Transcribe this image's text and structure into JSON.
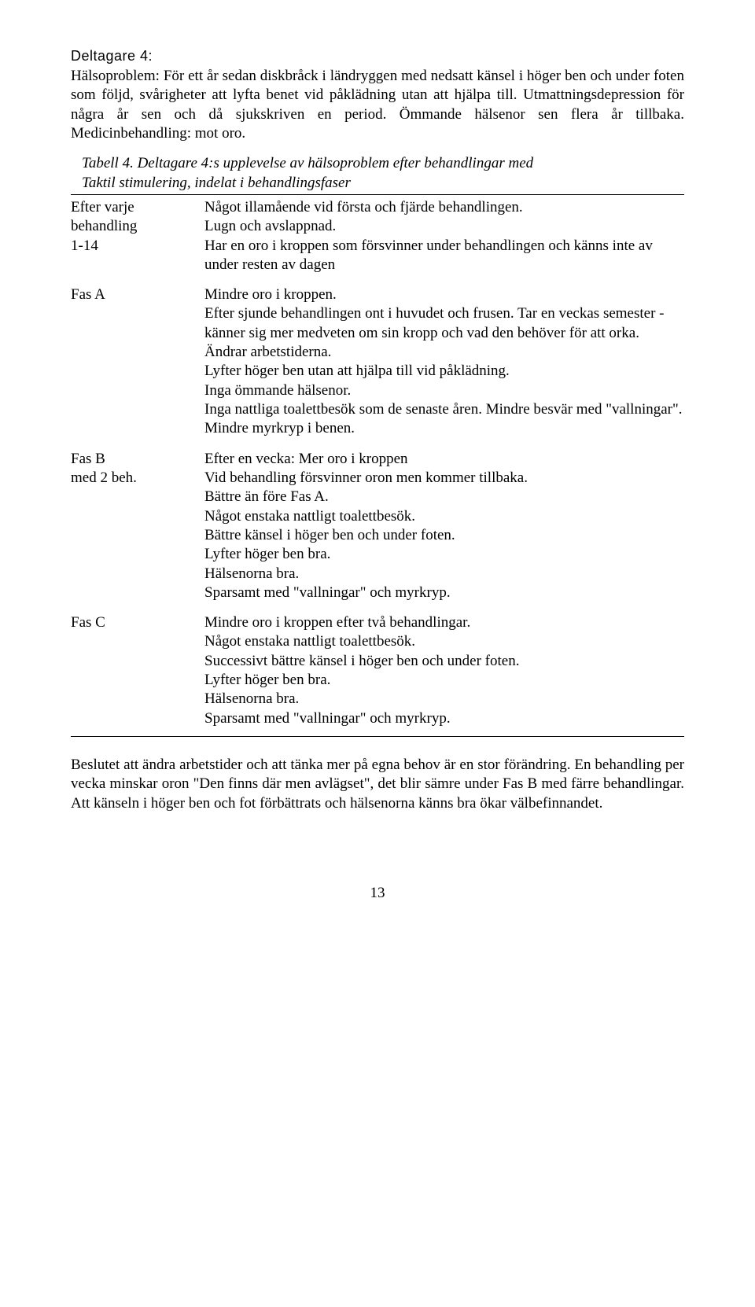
{
  "heading": "Deltagare 4:",
  "intro": [
    "Hälsoproblem: För ett år sedan diskbråck i ländryggen med nedsatt känsel i höger ben och under foten som följd, svårigheter att lyfta benet vid påklädning utan att hjälpa till. Utmattningsdepression för några år sen och då sjukskriven en period. Ömmande hälsenor sen flera år tillbaka. Medicinbehandling: mot oro."
  ],
  "table_caption_lines": [
    "Tabell 4. Deltagare 4:s upplevelse av hälsoproblem efter behandlingar med",
    "Taktil stimulering, indelat i behandlingsfaser"
  ],
  "rows": [
    {
      "left_lines": [
        "Efter varje",
        "behandling",
        "1-14"
      ],
      "right_lines": [
        "Något illamående vid första och fjärde behandlingen.",
        "Lugn och avslappnad.",
        "Har en oro i kroppen som försvinner under behandlingen och känns inte av under resten av dagen"
      ]
    },
    {
      "left_lines": [
        "Fas A"
      ],
      "right_lines": [
        "Mindre oro i kroppen.",
        "Efter sjunde behandlingen ont i huvudet och frusen. Tar en veckas semester - känner sig mer medveten om sin kropp och vad den behöver för att orka.",
        "Ändrar arbetstiderna.",
        "Lyfter höger ben utan att hjälpa till vid påklädning.",
        "Inga ömmande hälsenor.",
        "Inga nattliga toalettbesök som de senaste åren. Mindre besvär med \"vallningar\".",
        "Mindre myrkryp i benen."
      ]
    },
    {
      "left_lines": [
        "Fas B",
        "med 2 beh."
      ],
      "right_lines": [
        "Efter en vecka: Mer oro i kroppen",
        "Vid behandling försvinner oron men kommer tillbaka.",
        "Bättre än före Fas A.",
        "Något enstaka nattligt toalettbesök.",
        "Bättre känsel i höger ben och under foten.",
        "Lyfter höger ben bra.",
        "Hälsenorna bra.",
        "Sparsamt med \"vallningar\" och myrkryp."
      ]
    },
    {
      "left_lines": [
        "Fas C"
      ],
      "right_lines": [
        "Mindre oro i kroppen efter två behandlingar.",
        "Något enstaka nattligt toalettbesök.",
        "Successivt bättre känsel i höger ben och under foten.",
        "Lyfter höger ben bra.",
        "Hälsenorna bra.",
        "Sparsamt med \"vallningar\" och myrkryp."
      ]
    }
  ],
  "closing": "Beslutet att ändra arbetstider och att tänka mer på egna behov är en stor förändring. En behandling per vecka minskar oron \"Den finns där men avlägset\", det blir sämre under Fas B med färre behandlingar. Att känseln i höger ben och fot förbättrats och hälsenorna känns bra ökar välbefinnandet.",
  "page_number": "13"
}
